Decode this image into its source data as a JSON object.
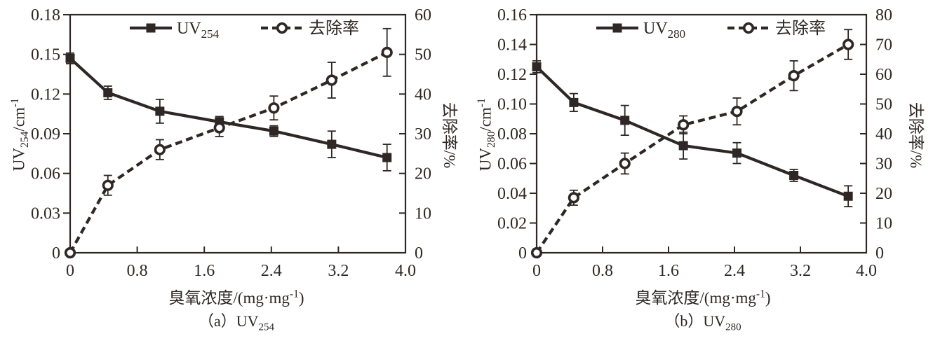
{
  "colors": {
    "line": "#2e2725",
    "background": "#ffffff",
    "marker_fill_open": "#ffffff"
  },
  "chart_data": [
    {
      "panel": "a",
      "type": "line",
      "caption": {
        "prefix": "（a）UV",
        "sub": "254"
      },
      "xlabel": {
        "text": "臭氧浓度/(mg·mg",
        "sup": "-1",
        "close": ")"
      },
      "ylabel_left": {
        "prefix": "UV",
        "sub": "254",
        "mid": "/cm",
        "sup": "-1"
      },
      "ylabel_right": "去除率/%",
      "x_axis": {
        "min": 0,
        "max": 4.0,
        "tick_labels": [
          "0",
          "0.8",
          "1.6",
          "2.4",
          "3.2",
          "4.0"
        ]
      },
      "y_left": {
        "min": 0,
        "max": 0.18,
        "tick_labels": [
          "0",
          "0.03",
          "0.06",
          "0.09",
          "0.12",
          "0.15",
          "0.18"
        ]
      },
      "y_right": {
        "min": 0,
        "max": 60,
        "tick_labels": [
          "0",
          "10",
          "20",
          "30",
          "40",
          "50",
          "60"
        ]
      },
      "x": [
        0,
        0.45,
        1.07,
        1.78,
        2.43,
        3.12,
        3.78
      ],
      "series": [
        {
          "name": "UV254",
          "legend": {
            "prefix": "UV",
            "sub": "254"
          },
          "axis": "left",
          "style": "solid-square",
          "values": [
            0.147,
            0.121,
            0.107,
            0.099,
            0.092,
            0.082,
            0.072
          ],
          "errors": [
            0.004,
            0.005,
            0.009,
            0.004,
            0.004,
            0.01,
            0.01
          ]
        },
        {
          "name": "去除率",
          "legend": {
            "prefix": "去除率",
            "sub": ""
          },
          "axis": "right",
          "style": "dashed-circle",
          "values": [
            0,
            17,
            26,
            31.5,
            36.5,
            43.5,
            50.5
          ],
          "errors": [
            0,
            2.5,
            2.5,
            2.2,
            3,
            4.5,
            6
          ]
        }
      ]
    },
    {
      "panel": "b",
      "type": "line",
      "caption": {
        "prefix": "（b）UV",
        "sub": "280"
      },
      "xlabel": {
        "text": "臭氧浓度/(mg·mg",
        "sup": "-1",
        "close": ")"
      },
      "ylabel_left": {
        "prefix": "UV",
        "sub": "280",
        "mid": "/cm",
        "sup": "-1"
      },
      "ylabel_right": "去除率/%",
      "x_axis": {
        "min": 0,
        "max": 4.0,
        "tick_labels": [
          "0",
          "0.8",
          "1.6",
          "2.4",
          "3.2",
          "4.0"
        ]
      },
      "y_left": {
        "min": 0,
        "max": 0.16,
        "tick_labels": [
          "0",
          "0.02",
          "0.04",
          "0.06",
          "0.08",
          "0.10",
          "0.12",
          "0.14",
          "0.16"
        ]
      },
      "y_right": {
        "min": 0,
        "max": 80,
        "tick_labels": [
          "0",
          "10",
          "20",
          "30",
          "40",
          "50",
          "60",
          "70",
          "80"
        ]
      },
      "x": [
        0,
        0.45,
        1.07,
        1.78,
        2.43,
        3.12,
        3.78
      ],
      "series": [
        {
          "name": "UV280",
          "legend": {
            "prefix": "UV",
            "sub": "280"
          },
          "axis": "left",
          "style": "solid-square",
          "values": [
            0.125,
            0.101,
            0.089,
            0.072,
            0.067,
            0.052,
            0.038
          ],
          "errors": [
            0.004,
            0.006,
            0.01,
            0.009,
            0.007,
            0.004,
            0.007
          ]
        },
        {
          "name": "去除率",
          "legend": {
            "prefix": "去除率",
            "sub": ""
          },
          "axis": "right",
          "style": "dashed-circle",
          "values": [
            0,
            18.5,
            30,
            43,
            47.5,
            59.5,
            70
          ],
          "errors": [
            0,
            2.5,
            3.5,
            3,
            4.5,
            5,
            5
          ]
        }
      ]
    }
  ]
}
